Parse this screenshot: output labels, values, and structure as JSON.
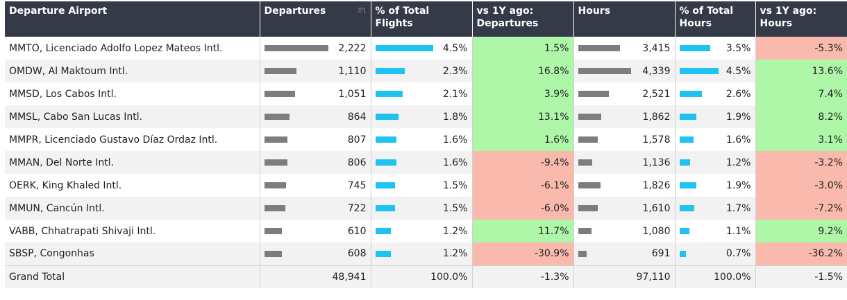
{
  "headers": {
    "airport": "Departure Airport",
    "departures": "Departures",
    "pct_flights": "% of Total Flights",
    "yoy_departures": "vs 1Y ago: Departures",
    "hours": "Hours",
    "pct_hours": "% of Total Hours",
    "yoy_hours": "vs 1Y ago: Hours"
  },
  "rows": [
    {
      "airport": "MMTO, Licenciado Adolfo Lopez Mateos Intl.",
      "departures": "2,222",
      "dep_frac": 1.0,
      "pct_flights": "4.5%",
      "pct_flights_frac": 1.0,
      "yoy_departures": "1.5%",
      "yoy_dep_sign": "pos",
      "hours": "3,415",
      "hours_frac": 0.787,
      "pct_hours": "3.5%",
      "pct_hours_frac": 0.778,
      "yoy_hours": "-5.3%",
      "yoy_hours_sign": "neg"
    },
    {
      "airport": "OMDW, Al Maktoum Intl.",
      "departures": "1,110",
      "dep_frac": 0.5,
      "pct_flights": "2.3%",
      "pct_flights_frac": 0.511,
      "yoy_departures": "16.8%",
      "yoy_dep_sign": "pos",
      "hours": "4,339",
      "hours_frac": 1.0,
      "pct_hours": "4.5%",
      "pct_hours_frac": 1.0,
      "yoy_hours": "13.6%",
      "yoy_hours_sign": "pos"
    },
    {
      "airport": "MMSD, Los Cabos Intl.",
      "departures": "1,051",
      "dep_frac": 0.473,
      "pct_flights": "2.1%",
      "pct_flights_frac": 0.467,
      "yoy_departures": "3.9%",
      "yoy_dep_sign": "pos",
      "hours": "2,521",
      "hours_frac": 0.581,
      "pct_hours": "2.6%",
      "pct_hours_frac": 0.578,
      "yoy_hours": "7.4%",
      "yoy_hours_sign": "pos"
    },
    {
      "airport": "MMSL, Cabo San Lucas Intl.",
      "departures": "864",
      "dep_frac": 0.389,
      "pct_flights": "1.8%",
      "pct_flights_frac": 0.4,
      "yoy_departures": "13.1%",
      "yoy_dep_sign": "pos",
      "hours": "1,862",
      "hours_frac": 0.429,
      "pct_hours": "1.9%",
      "pct_hours_frac": 0.422,
      "yoy_hours": "8.2%",
      "yoy_hours_sign": "pos"
    },
    {
      "airport": "MMPR, Licenciado Gustavo Díaz Ordaz Intl.",
      "departures": "807",
      "dep_frac": 0.363,
      "pct_flights": "1.6%",
      "pct_flights_frac": 0.356,
      "yoy_departures": "1.6%",
      "yoy_dep_sign": "pos",
      "hours": "1,578",
      "hours_frac": 0.364,
      "pct_hours": "1.6%",
      "pct_hours_frac": 0.356,
      "yoy_hours": "3.1%",
      "yoy_hours_sign": "pos"
    },
    {
      "airport": "MMAN, Del Norte Intl.",
      "departures": "806",
      "dep_frac": 0.363,
      "pct_flights": "1.6%",
      "pct_flights_frac": 0.356,
      "yoy_departures": "-9.4%",
      "yoy_dep_sign": "neg",
      "hours": "1,136",
      "hours_frac": 0.262,
      "pct_hours": "1.2%",
      "pct_hours_frac": 0.267,
      "yoy_hours": "-3.2%",
      "yoy_hours_sign": "neg"
    },
    {
      "airport": "OERK, King Khaled Intl.",
      "departures": "745",
      "dep_frac": 0.335,
      "pct_flights": "1.5%",
      "pct_flights_frac": 0.333,
      "yoy_departures": "-6.1%",
      "yoy_dep_sign": "neg",
      "hours": "1,826",
      "hours_frac": 0.421,
      "pct_hours": "1.9%",
      "pct_hours_frac": 0.422,
      "yoy_hours": "-3.0%",
      "yoy_hours_sign": "neg"
    },
    {
      "airport": "MMUN, Cancún Intl.",
      "departures": "722",
      "dep_frac": 0.325,
      "pct_flights": "1.5%",
      "pct_flights_frac": 0.333,
      "yoy_departures": "-6.0%",
      "yoy_dep_sign": "neg",
      "hours": "1,610",
      "hours_frac": 0.371,
      "pct_hours": "1.7%",
      "pct_hours_frac": 0.378,
      "yoy_hours": "-7.2%",
      "yoy_hours_sign": "neg"
    },
    {
      "airport": "VABB, Chhatrapati Shivaji Intl.",
      "departures": "610",
      "dep_frac": 0.275,
      "pct_flights": "1.2%",
      "pct_flights_frac": 0.267,
      "yoy_departures": "11.7%",
      "yoy_dep_sign": "pos",
      "hours": "1,080",
      "hours_frac": 0.249,
      "pct_hours": "1.1%",
      "pct_hours_frac": 0.244,
      "yoy_hours": "9.2%",
      "yoy_hours_sign": "pos"
    },
    {
      "airport": "SBSP, Congonhas",
      "departures": "608",
      "dep_frac": 0.274,
      "pct_flights": "1.2%",
      "pct_flights_frac": 0.267,
      "yoy_departures": "-30.9%",
      "yoy_dep_sign": "neg",
      "hours": "691",
      "hours_frac": 0.159,
      "pct_hours": "0.7%",
      "pct_hours_frac": 0.156,
      "yoy_hours": "-36.2%",
      "yoy_hours_sign": "neg"
    }
  ],
  "total": {
    "airport": "Grand Total",
    "departures": "48,941",
    "pct_flights": "100.0%",
    "yoy_departures": "-1.3%",
    "hours": "97,110",
    "pct_hours": "100.0%",
    "yoy_hours": "-1.5%"
  },
  "colors": {
    "header_bg": "#353a48",
    "bar_gray": "#7d7d7d",
    "bar_blue": "#1ec3f2",
    "positive_bg": "#aef7a8",
    "negative_bg": "#f9b9ac"
  },
  "icons": {
    "sort": "sort-descending-icon"
  }
}
